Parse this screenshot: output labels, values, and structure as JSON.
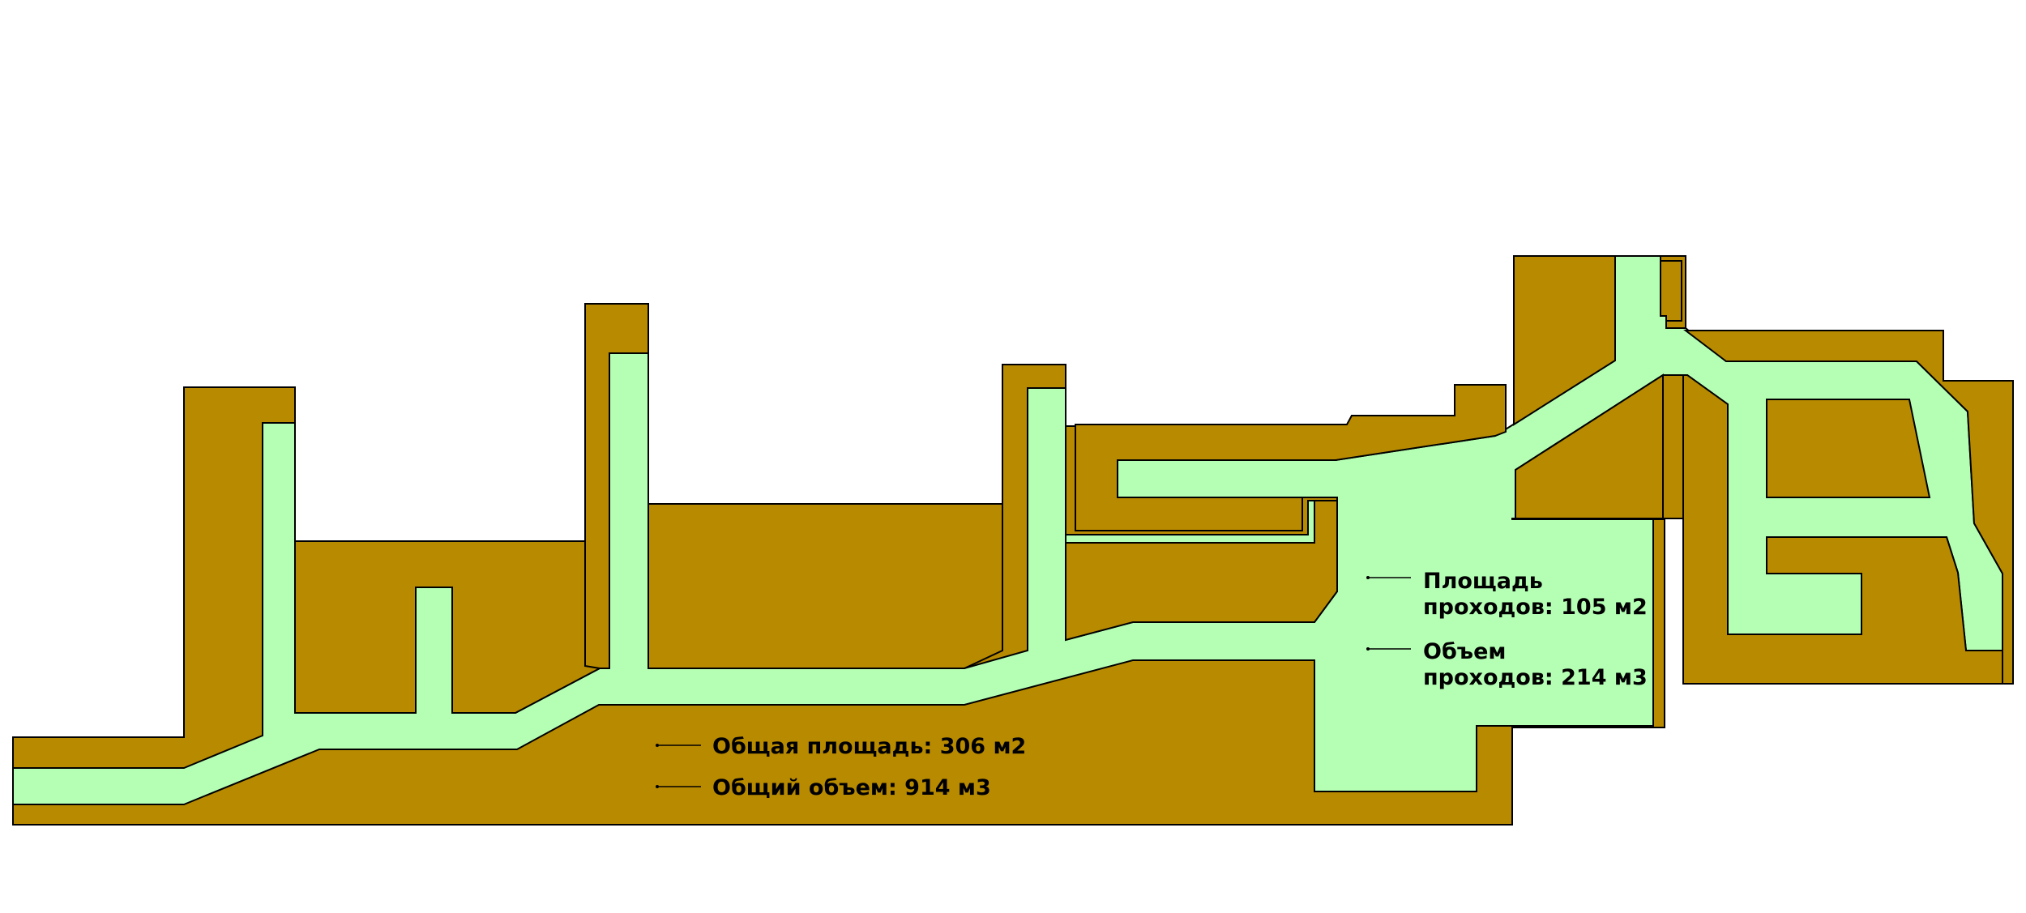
{
  "colors": {
    "background": "#ffffff",
    "rock": "#b88a00",
    "passage": "#b5ffb5",
    "outline": "#000000",
    "text": "#000000"
  },
  "labels": {
    "passage_area_line1": "Площадь",
    "passage_area_line2": "проходов: 105 м2",
    "passage_volume_line1": "Объем",
    "passage_volume_line2": "проходов: 214 м3",
    "total_area": "Общая площадь: 306 м2",
    "total_volume": "Общий объем: 914 м3"
  }
}
